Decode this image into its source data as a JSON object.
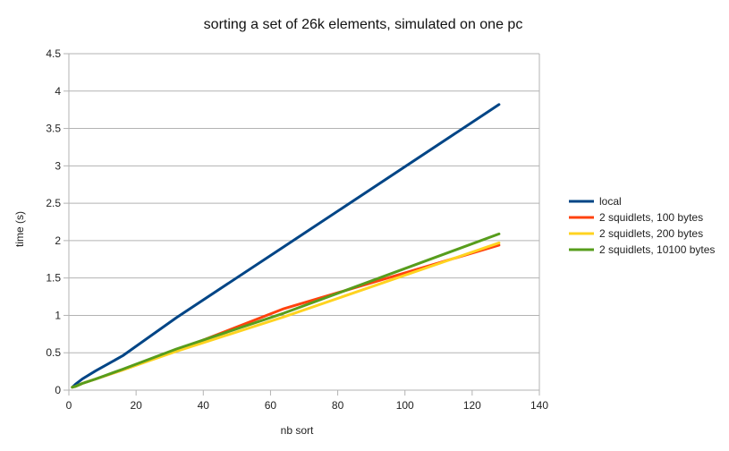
{
  "chart_data": {
    "type": "line",
    "title": "sorting a set of 26k elements, simulated on one pc",
    "xlabel": "nb sort",
    "ylabel": "time (s)",
    "xlim": [
      0,
      140
    ],
    "ylim": [
      0,
      4.5
    ],
    "xticks": [
      "0",
      "20",
      "40",
      "60",
      "80",
      "100",
      "120",
      "140"
    ],
    "yticks": [
      "0",
      "0.5",
      "1",
      "1.5",
      "2",
      "2.5",
      "3",
      "3.5",
      "4",
      "4.5"
    ],
    "grid": "horizontal",
    "legend_position": "right",
    "series": [
      {
        "name": "local",
        "color": "#004586",
        "x": [
          1,
          2,
          4,
          8,
          16,
          32,
          64,
          128
        ],
        "y": [
          0.04,
          0.08,
          0.15,
          0.26,
          0.46,
          0.97,
          1.92,
          3.82
        ]
      },
      {
        "name": "2 squidlets, 100 bytes",
        "color": "#ff420e",
        "x": [
          1,
          2,
          4,
          8,
          16,
          32,
          64,
          128
        ],
        "y": [
          0.04,
          0.05,
          0.09,
          0.15,
          0.27,
          0.53,
          1.09,
          1.94
        ]
      },
      {
        "name": "2 squidlets, 200 bytes",
        "color": "#ffd320",
        "x": [
          1,
          2,
          4,
          8,
          16,
          32,
          64,
          128
        ],
        "y": [
          0.04,
          0.05,
          0.09,
          0.15,
          0.27,
          0.52,
          0.98,
          1.97
        ]
      },
      {
        "name": "2 squidlets, 10100 bytes",
        "color": "#579d1c",
        "x": [
          1,
          2,
          4,
          8,
          16,
          32,
          64,
          128
        ],
        "y": [
          0.04,
          0.05,
          0.09,
          0.15,
          0.28,
          0.55,
          1.03,
          2.09
        ]
      }
    ]
  }
}
